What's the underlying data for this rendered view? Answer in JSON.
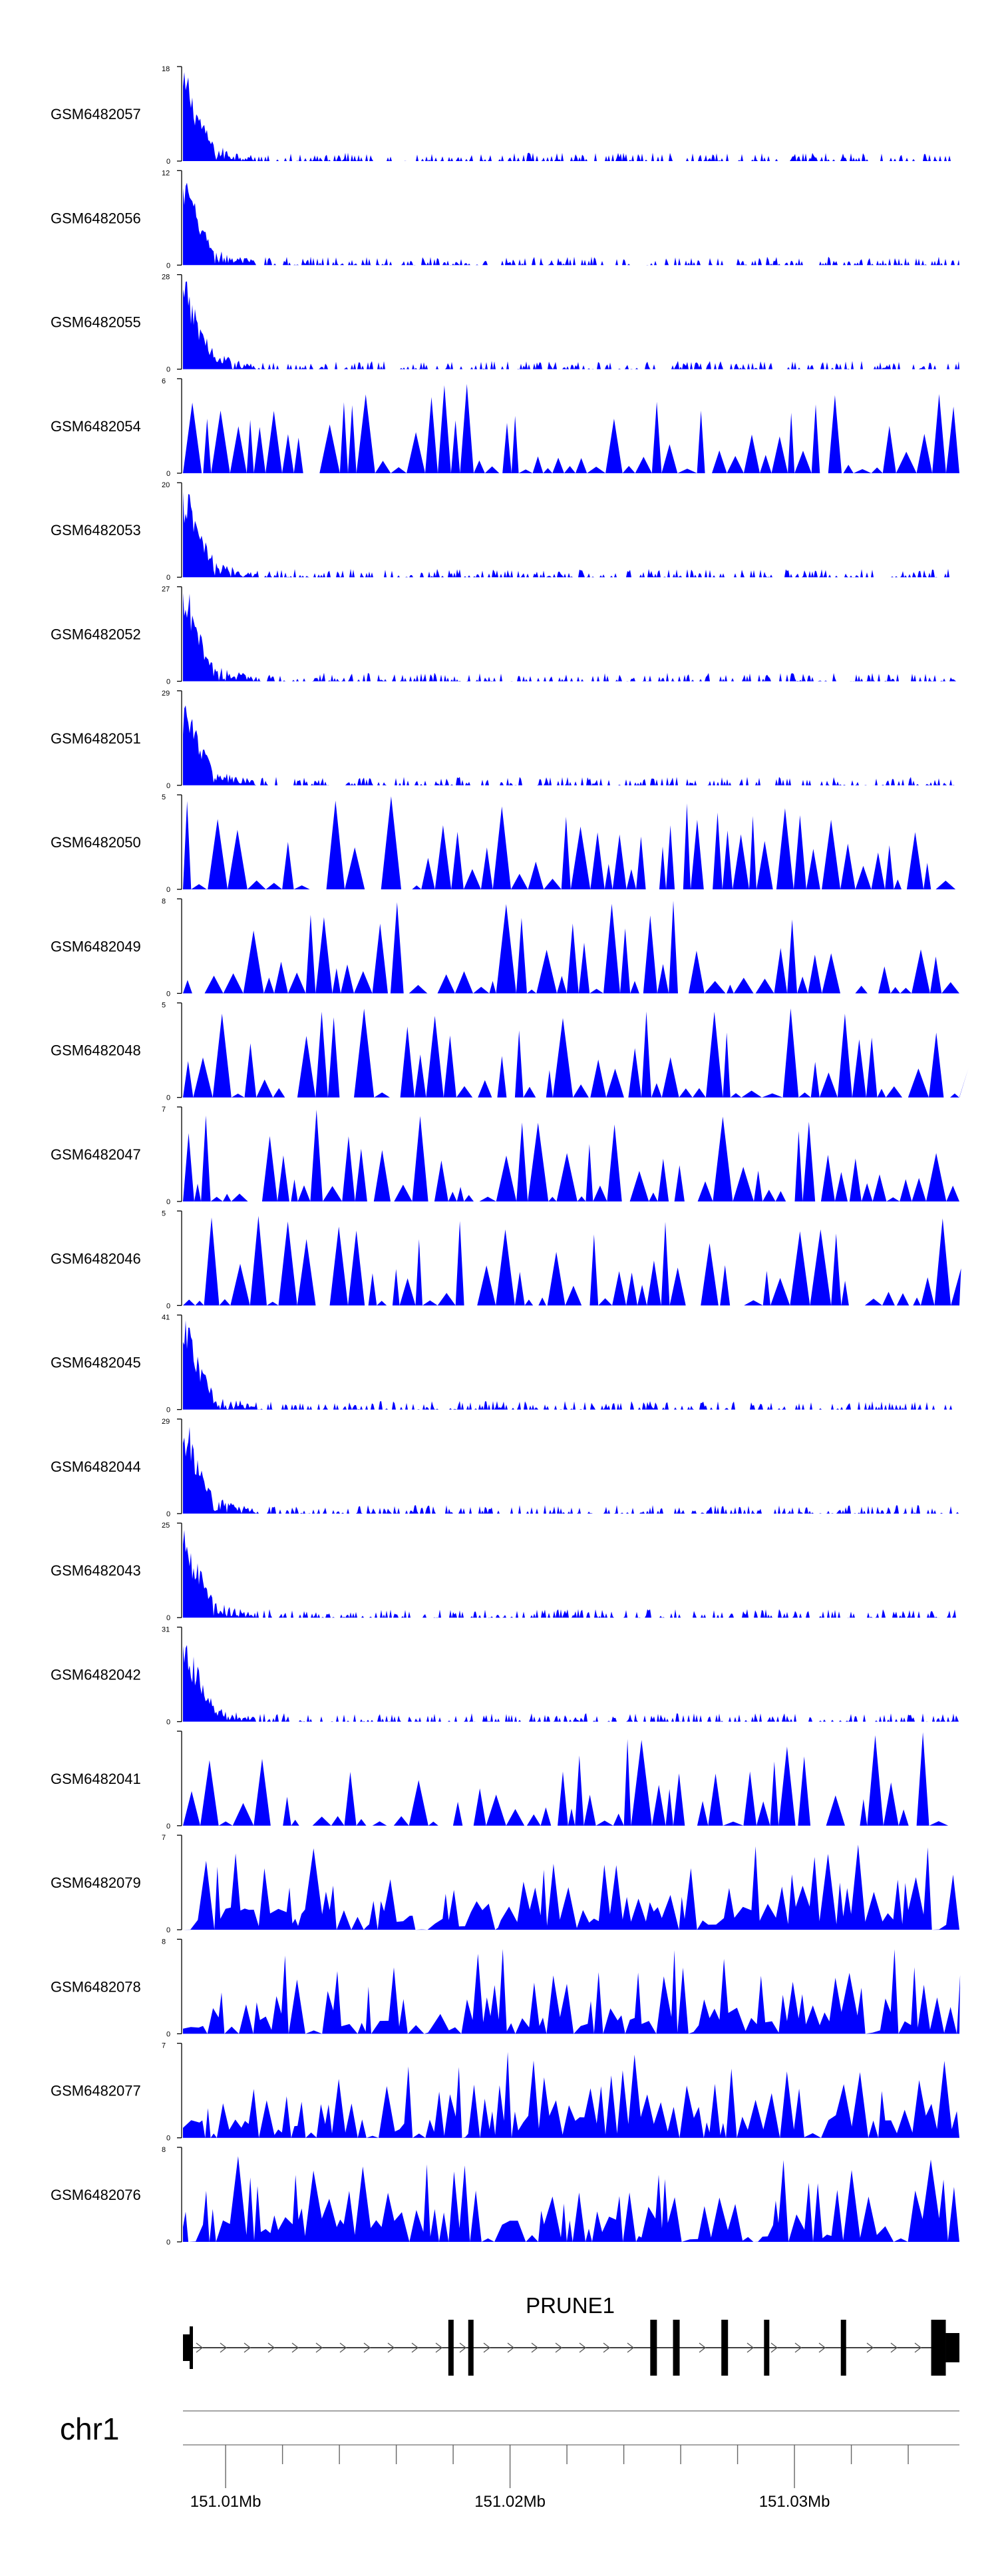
{
  "chart_data": {
    "type": "area",
    "colors": {
      "signal": "#0000ff",
      "axis": "#000000",
      "gene": "#000000"
    },
    "x_unit": "Mb",
    "x_range": [
      151.0058,
      151.0331
    ],
    "tracks": [
      {
        "name": "GSM6482057",
        "ymax": "18",
        "ymin": "0",
        "peak": 18,
        "profile": "sparse"
      },
      {
        "name": "GSM6482056",
        "ymax": "12",
        "ymin": "0",
        "peak": 12,
        "profile": "sparse"
      },
      {
        "name": "GSM6482055",
        "ymax": "28",
        "ymin": "0",
        "peak": 28,
        "profile": "sparse"
      },
      {
        "name": "GSM6482054",
        "ymax": "6",
        "ymin": "0",
        "peak": 6,
        "profile": "spiky"
      },
      {
        "name": "GSM6482053",
        "ymax": "20",
        "ymin": "0",
        "peak": 20,
        "profile": "sparse"
      },
      {
        "name": "GSM6482052",
        "ymax": "27",
        "ymin": "0",
        "peak": 27,
        "profile": "sparse"
      },
      {
        "name": "GSM6482051",
        "ymax": "29",
        "ymin": "0",
        "peak": 29,
        "profile": "sparse"
      },
      {
        "name": "GSM6482050",
        "ymax": "5",
        "ymin": "0",
        "peak": 5,
        "profile": "spiky"
      },
      {
        "name": "GSM6482049",
        "ymax": "8",
        "ymin": "0",
        "peak": 8,
        "profile": "spiky"
      },
      {
        "name": "GSM6482048",
        "ymax": "5",
        "ymin": "0",
        "peak": 5,
        "profile": "spiky"
      },
      {
        "name": "GSM6482047",
        "ymax": "7",
        "ymin": "0",
        "peak": 7,
        "profile": "spiky"
      },
      {
        "name": "GSM6482046",
        "ymax": "5",
        "ymin": "0",
        "peak": 5,
        "profile": "spiky"
      },
      {
        "name": "GSM6482045",
        "ymax": "41",
        "ymin": "0",
        "peak": 41,
        "profile": "sparse"
      },
      {
        "name": "GSM6482044",
        "ymax": "29",
        "ymin": "0",
        "peak": 29,
        "profile": "sparse"
      },
      {
        "name": "GSM6482043",
        "ymax": "25",
        "ymin": "0",
        "peak": 25,
        "profile": "sparse"
      },
      {
        "name": "GSM6482042",
        "ymax": "31",
        "ymin": "0",
        "peak": 31,
        "profile": "sparse"
      },
      {
        "name": "GSM6482041",
        "ymax": "",
        "ymin": "0",
        "peak": 5,
        "profile": "spiky"
      },
      {
        "name": "GSM6482079",
        "ymax": "7",
        "ymin": "0",
        "peak": 7,
        "profile": "dense"
      },
      {
        "name": "GSM6482078",
        "ymax": "8",
        "ymin": "0",
        "peak": 8,
        "profile": "dense"
      },
      {
        "name": "GSM6482077",
        "ymax": "7",
        "ymin": "0",
        "peak": 7,
        "profile": "dense"
      },
      {
        "name": "GSM6482076",
        "ymax": "8",
        "ymin": "0",
        "peak": 8,
        "profile": "dense"
      }
    ],
    "gene": {
      "name": "PRUNE1",
      "start": 151.0058,
      "end": 151.0331,
      "strand": "+",
      "exons": [
        151.0061,
        151.0152,
        151.0159,
        151.0223,
        151.0231,
        151.0248,
        151.0263,
        151.029,
        151.0322
      ]
    },
    "chromosome": "chr1",
    "axis": {
      "ticks": [
        151.0073,
        151.0093,
        151.0113,
        151.0133,
        151.0153,
        151.0173,
        151.0193,
        151.0213,
        151.0233,
        151.0253,
        151.0273,
        151.0293,
        151.0313
      ],
      "labels": [
        {
          "value": 151.0073,
          "text": "151.01Mb"
        },
        {
          "value": 151.0173,
          "text": "151.02Mb"
        },
        {
          "value": 151.0273,
          "text": "151.03Mb"
        }
      ]
    }
  }
}
